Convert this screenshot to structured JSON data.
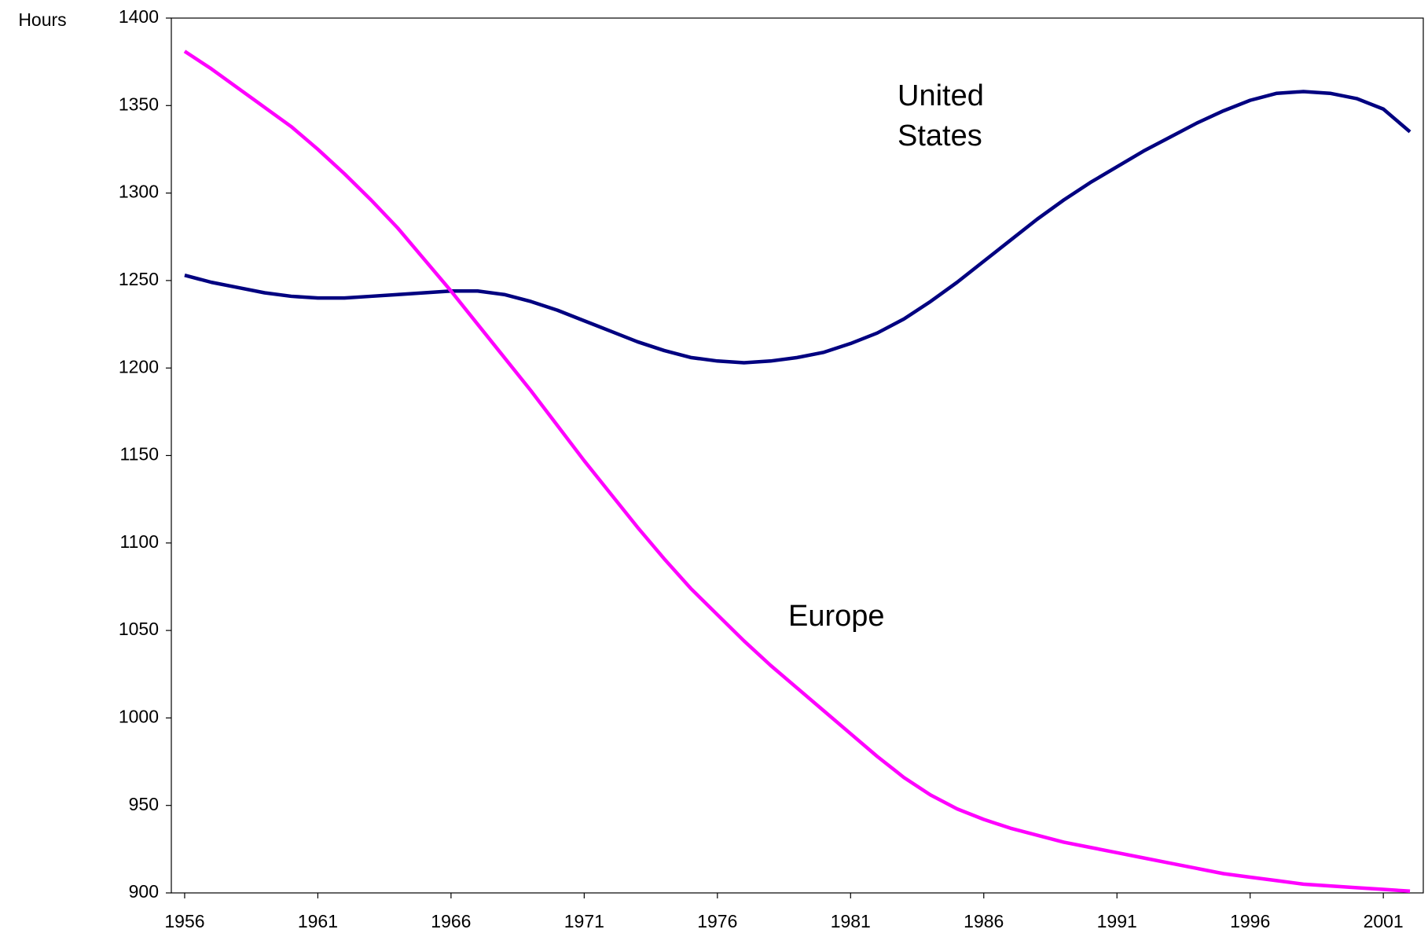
{
  "chart_data": {
    "type": "line",
    "y_label": "Hours",
    "x": [
      1956,
      1957,
      1958,
      1959,
      1960,
      1961,
      1962,
      1963,
      1964,
      1965,
      1966,
      1967,
      1968,
      1969,
      1970,
      1971,
      1972,
      1973,
      1974,
      1975,
      1976,
      1977,
      1978,
      1979,
      1980,
      1981,
      1982,
      1983,
      1984,
      1985,
      1986,
      1987,
      1988,
      1989,
      1990,
      1991,
      1992,
      1993,
      1994,
      1995,
      1996,
      1997,
      1998,
      1999,
      2000,
      2001,
      2002
    ],
    "series": [
      {
        "name": "United States",
        "color": "#000080",
        "values": [
          1253,
          1249,
          1246,
          1243,
          1241,
          1240,
          1240,
          1241,
          1242,
          1243,
          1244,
          1244,
          1242,
          1238,
          1233,
          1227,
          1221,
          1215,
          1210,
          1206,
          1204,
          1203,
          1204,
          1206,
          1209,
          1214,
          1220,
          1228,
          1238,
          1249,
          1261,
          1273,
          1285,
          1296,
          1306,
          1315,
          1324,
          1332,
          1340,
          1347,
          1353,
          1357,
          1358,
          1357,
          1354,
          1348,
          1335
        ]
      },
      {
        "name": "Europe",
        "color": "#ff00ff",
        "values": [
          1381,
          1371,
          1360,
          1349,
          1338,
          1325,
          1311,
          1296,
          1280,
          1262,
          1244,
          1225,
          1206,
          1187,
          1167,
          1147,
          1128,
          1109,
          1091,
          1074,
          1059,
          1044,
          1030,
          1017,
          1004,
          991,
          978,
          966,
          956,
          948,
          942,
          937,
          933,
          929,
          926,
          923,
          920,
          917,
          914,
          911,
          909,
          907,
          905,
          904,
          903,
          902,
          901
        ]
      }
    ],
    "xlim": [
      1955.5,
      2002.5
    ],
    "xticks": [
      1956,
      1961,
      1966,
      1971,
      1976,
      1981,
      1986,
      1991,
      1996,
      2001
    ],
    "ylim": [
      900,
      1400
    ],
    "yticks": [
      900,
      950,
      1000,
      1050,
      1100,
      1150,
      1200,
      1250,
      1300,
      1350,
      1400
    ],
    "grid": false
  }
}
